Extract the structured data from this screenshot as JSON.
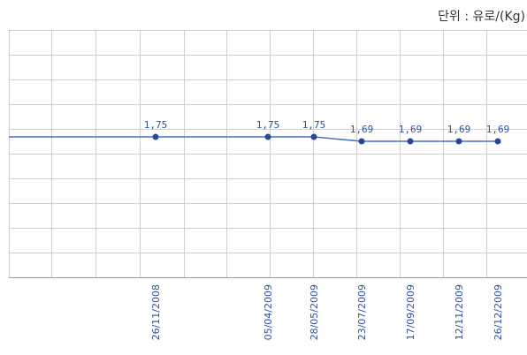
{
  "chart_data": {
    "type": "line",
    "unit_label": "단위 : 유로/(Kg)",
    "x_labels": [
      "26/11/2008",
      "05/04/2009",
      "28/05/2009",
      "23/07/2009",
      "17/09/2009",
      "12/11/2009",
      "26/12/2009"
    ],
    "values": [
      1.75,
      1.75,
      1.75,
      1.69,
      1.69,
      1.69,
      1.69
    ],
    "data_labels": [
      "1,75",
      "1,75",
      "1,75",
      "1,69",
      "1,69",
      "1,69",
      "1,69"
    ],
    "grid": true,
    "colors": {
      "line": "#4a6fc4",
      "marker": "#26489a",
      "data_label": "#2e4f9e",
      "tick_label": "#2e4f9e",
      "grid": "#cfcfcf"
    }
  }
}
